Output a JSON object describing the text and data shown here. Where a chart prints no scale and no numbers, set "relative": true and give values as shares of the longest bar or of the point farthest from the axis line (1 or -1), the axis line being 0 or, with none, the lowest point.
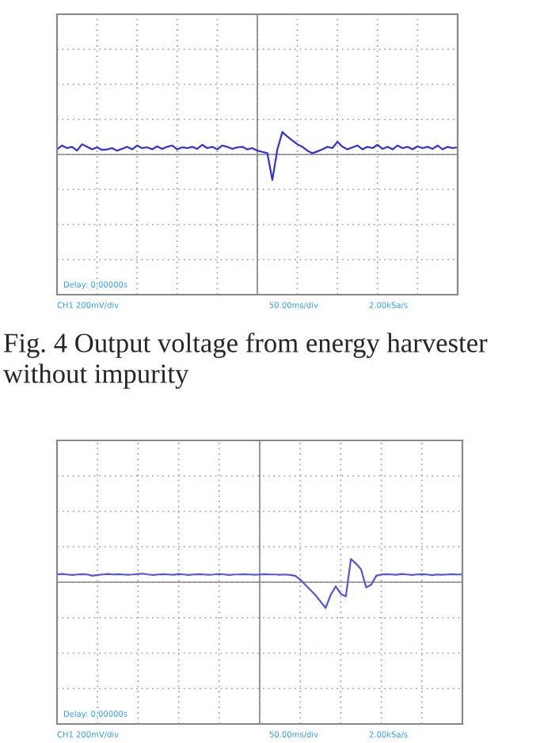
{
  "chart_data": [
    {
      "type": "line",
      "relative": true,
      "grid": true,
      "categories": [
        null,
        null,
        null,
        null,
        null,
        null,
        null,
        null,
        null,
        null,
        null,
        null,
        null,
        null,
        null,
        null,
        null,
        null,
        null,
        null,
        null,
        null,
        null,
        null,
        null,
        null,
        null,
        null,
        null,
        null,
        null,
        null,
        null,
        null,
        null,
        null,
        null,
        null,
        null,
        null,
        null,
        null,
        null,
        null,
        null,
        null,
        null,
        null,
        null,
        null,
        null,
        null,
        null,
        null,
        null,
        null,
        null,
        null,
        null,
        null,
        null,
        null,
        null,
        null,
        null,
        null,
        null,
        null,
        null,
        null,
        null,
        null,
        null,
        null,
        null,
        null,
        null,
        null,
        null,
        null,
        null
      ],
      "series": [
        {
          "color": "#3232d8",
          "values": [
            0.2,
            0.35,
            0.25,
            0.3,
            0.15,
            0.4,
            0.3,
            0.2,
            0.28,
            0.18,
            0.2,
            0.25,
            0.15,
            0.22,
            0.3,
            0.2,
            0.35,
            0.25,
            0.28,
            0.2,
            0.32,
            0.22,
            0.3,
            0.35,
            0.2,
            0.28,
            0.25,
            0.3,
            0.22,
            0.38,
            0.25,
            0.3,
            0.2,
            0.35,
            0.3,
            0.22,
            0.28,
            0.3,
            0.2,
            0.25,
            0.15,
            0.1,
            0.05,
            -1.0,
            0.2,
            0.88,
            0.7,
            0.55,
            0.4,
            0.3,
            0.15,
            0.05,
            0.12,
            0.2,
            0.3,
            0.25,
            0.5,
            0.3,
            0.2,
            0.28,
            0.35,
            0.2,
            0.3,
            0.25,
            0.38,
            0.22,
            0.3,
            0.2,
            0.35,
            0.25,
            0.3,
            0.2,
            0.32,
            0.25,
            0.3,
            0.22,
            0.35,
            0.2,
            0.3,
            0.25,
            0.28
          ]
        }
      ],
      "annotations": [
        "CH1 200mV/div",
        "50.00ms/div",
        "2.00kSa/s",
        "Delay: 0.00000s",
        "Fig. 4 Output voltage from energy harvester without impurity"
      ]
    },
    {
      "type": "line",
      "relative": true,
      "grid": true,
      "categories": [
        null,
        null,
        null,
        null,
        null,
        null,
        null,
        null,
        null,
        null,
        null,
        null,
        null,
        null,
        null,
        null,
        null,
        null,
        null,
        null,
        null,
        null,
        null,
        null,
        null,
        null,
        null,
        null,
        null,
        null,
        null,
        null,
        null,
        null,
        null,
        null,
        null,
        null,
        null,
        null,
        null,
        null,
        null,
        null,
        null,
        null,
        null,
        null,
        null,
        null,
        null,
        null,
        null,
        null,
        null,
        null,
        null,
        null,
        null,
        null,
        null,
        null,
        null,
        null,
        null,
        null,
        null,
        null,
        null,
        null,
        null,
        null,
        null,
        null,
        null,
        null,
        null,
        null,
        null,
        null,
        null
      ],
      "series": [
        {
          "color": "#5555dd",
          "values": [
            0.3,
            0.32,
            0.3,
            0.28,
            0.3,
            0.31,
            0.3,
            0.25,
            0.28,
            0.3,
            0.32,
            0.3,
            0.31,
            0.3,
            0.29,
            0.3,
            0.32,
            0.33,
            0.3,
            0.28,
            0.3,
            0.31,
            0.3,
            0.29,
            0.32,
            0.3,
            0.28,
            0.3,
            0.31,
            0.3,
            0.29,
            0.3,
            0.32,
            0.3,
            0.28,
            0.3,
            0.3,
            0.31,
            0.3,
            0.29,
            0.3,
            0.31,
            0.3,
            0.3,
            0.29,
            0.3,
            0.28,
            0.25,
            0.1,
            -0.1,
            -0.3,
            -0.5,
            -0.75,
            -1.0,
            -0.5,
            -0.16,
            -0.45,
            -0.55,
            0.9,
            0.72,
            0.5,
            -0.2,
            -0.1,
            0.25,
            0.3,
            0.31,
            0.3,
            0.29,
            0.32,
            0.3,
            0.28,
            0.3,
            0.31,
            0.3,
            0.27,
            0.3,
            0.29,
            0.3,
            0.31,
            0.3,
            0.3
          ]
        }
      ],
      "annotations": [
        "CH1 200mV/div",
        "50.00ms/div",
        "2.00kSa/s",
        "Delay: 0.00000s"
      ]
    }
  ]
}
